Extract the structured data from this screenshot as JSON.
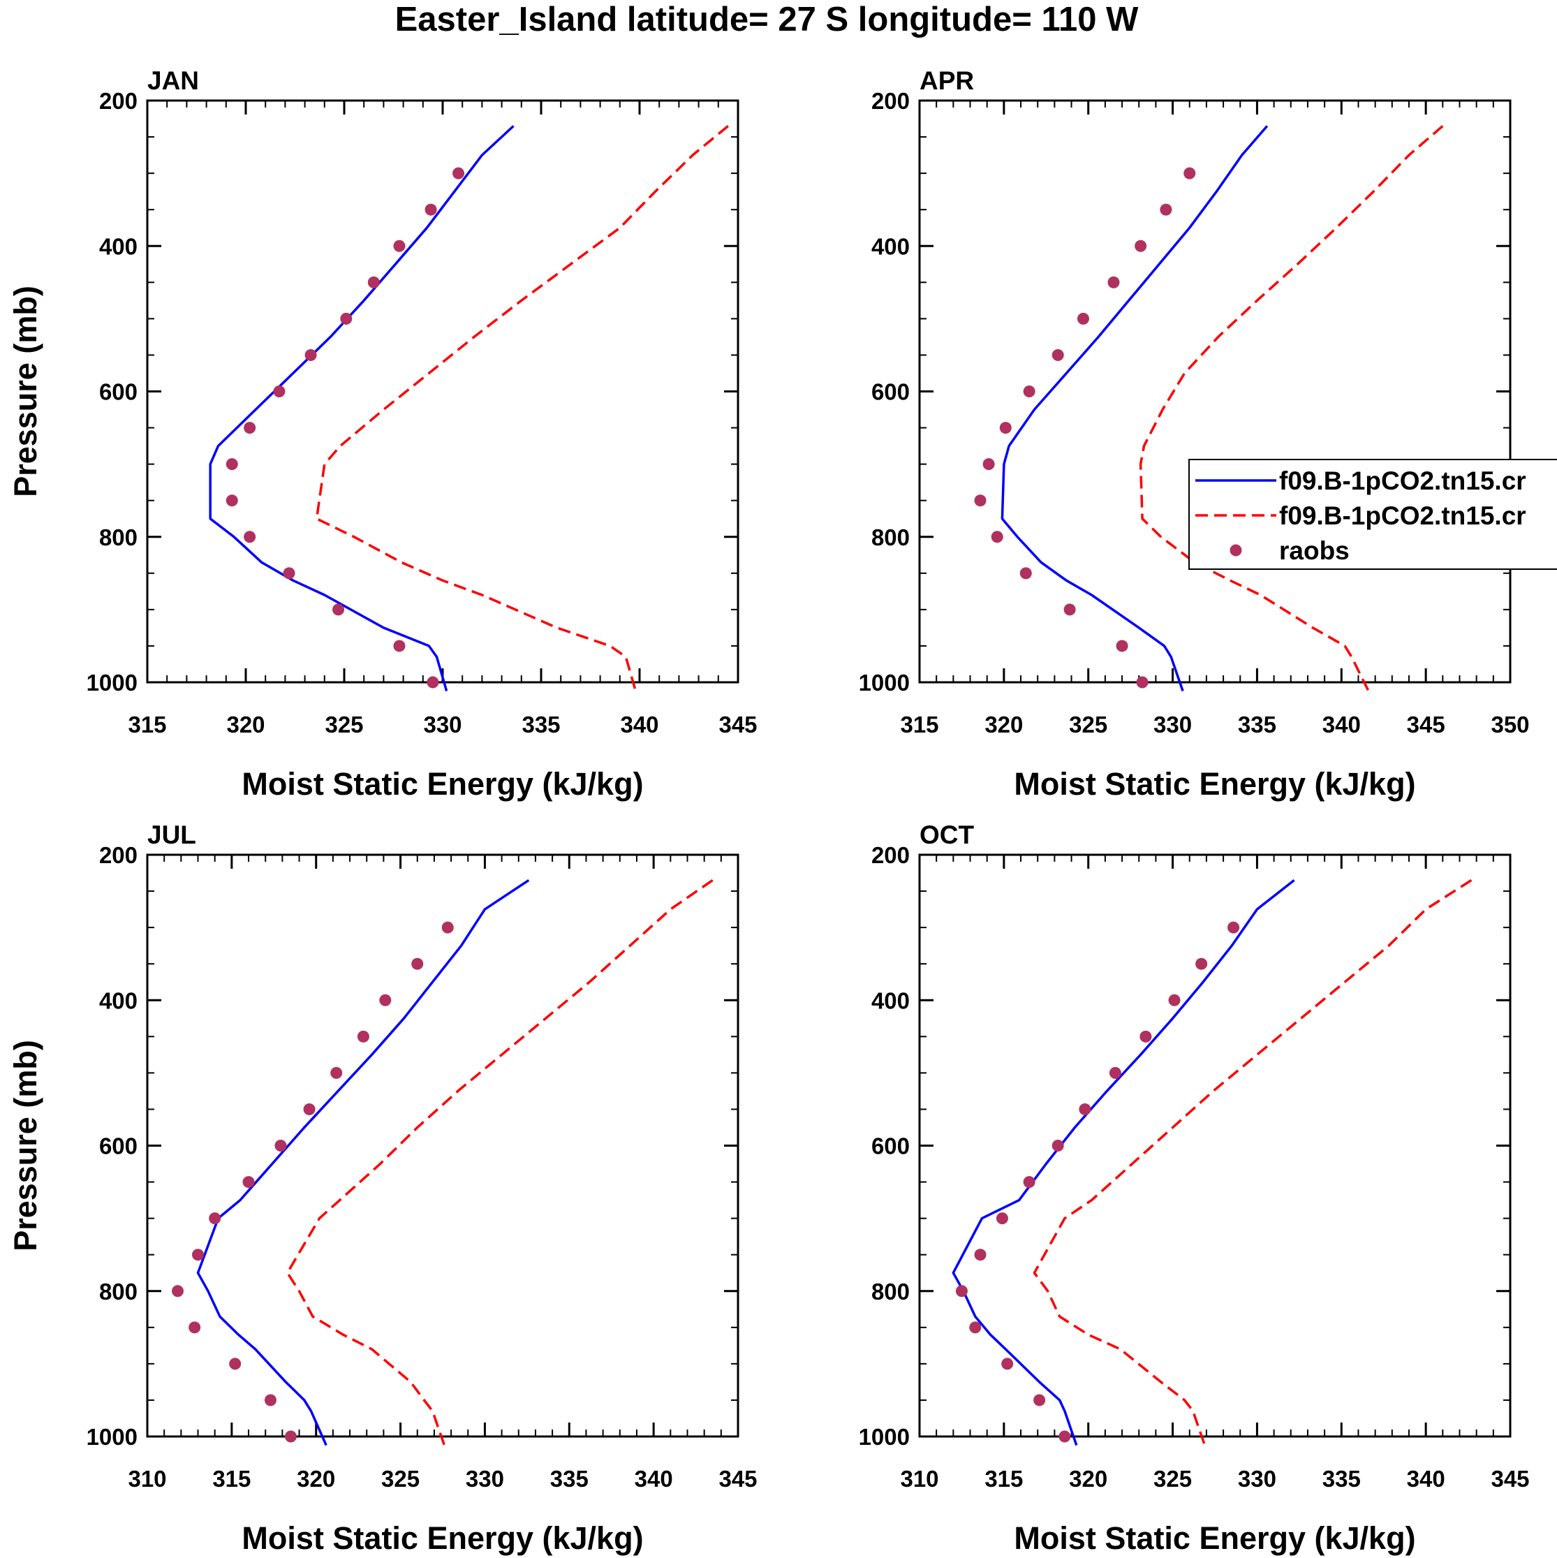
{
  "title": "Easter_Island  latitude= 27 S longitude= 110 W",
  "colors": {
    "model_a": "#0000ff",
    "model_b": "#ff0000",
    "obs": "#b03060",
    "axis": "#000000"
  },
  "legend": {
    "panel": 1,
    "placement": "right-middle",
    "entries": [
      {
        "label": "f09.B-1pCO2.tn15.cr",
        "series": "model_a"
      },
      {
        "label": "f09.B-1pCO2.tn15.cr",
        "series": "model_b"
      },
      {
        "label": "raobs",
        "series": "obs"
      }
    ]
  },
  "chart_data": [
    {
      "type": "line",
      "title": "JAN",
      "xlabel": "Moist Static Energy (kJ/kg)",
      "ylabel": "Pressure (mb)",
      "xlim": [
        315,
        345
      ],
      "ylim": [
        1000,
        200
      ],
      "xticks": [
        315,
        320,
        325,
        330,
        335,
        340,
        345
      ],
      "yticks": [
        200,
        400,
        600,
        800,
        1000
      ],
      "series": [
        {
          "name": "f09.B-1pCO2.tn15.cr",
          "style": "solid",
          "color": "model_a",
          "pressure": [
            235,
            275,
            325,
            375,
            425,
            475,
            525,
            575,
            625,
            675,
            700,
            775,
            800,
            835,
            860,
            880,
            925,
            950,
            965,
            1012
          ],
          "values": [
            333.6,
            332.0,
            330.6,
            329.2,
            327.6,
            326.0,
            324.3,
            322.4,
            320.5,
            318.6,
            318.2,
            318.2,
            319.4,
            320.8,
            322.4,
            324.0,
            327.0,
            329.3,
            329.7,
            330.2
          ]
        },
        {
          "name": "f09.B-1pCO2.tn15.cr",
          "style": "dashed",
          "color": "model_b",
          "pressure": [
            235,
            275,
            325,
            375,
            425,
            475,
            525,
            575,
            625,
            675,
            700,
            775,
            800,
            835,
            860,
            880,
            925,
            950,
            965,
            1012
          ],
          "values": [
            344.5,
            342.7,
            340.8,
            339.0,
            336.5,
            334.0,
            331.6,
            329.3,
            327.0,
            324.8,
            324.0,
            323.6,
            325.5,
            327.9,
            330.0,
            332.0,
            335.8,
            338.5,
            339.3,
            339.8
          ]
        },
        {
          "name": "raobs",
          "style": "markers",
          "color": "obs",
          "pressure": [
            300,
            350,
            400,
            450,
            500,
            550,
            600,
            650,
            700,
            750,
            800,
            850,
            900,
            950,
            1000
          ],
          "values": [
            330.8,
            329.4,
            327.8,
            326.5,
            325.1,
            323.3,
            321.7,
            320.2,
            319.3,
            319.3,
            320.2,
            322.2,
            324.7,
            327.8,
            329.5
          ]
        }
      ]
    },
    {
      "type": "line",
      "title": "APR",
      "xlabel": "Moist Static Energy (kJ/kg)",
      "ylabel": "",
      "xlim": [
        315,
        350
      ],
      "ylim": [
        1000,
        200
      ],
      "xticks": [
        315,
        320,
        325,
        330,
        335,
        340,
        345,
        350
      ],
      "yticks": [
        200,
        400,
        600,
        800,
        1000
      ],
      "series": [
        {
          "name": "f09.B-1pCO2.tn15.cr",
          "style": "solid",
          "color": "model_a",
          "pressure": [
            235,
            275,
            325,
            375,
            425,
            475,
            525,
            575,
            625,
            675,
            700,
            775,
            800,
            835,
            860,
            880,
            925,
            950,
            965,
            1012
          ],
          "values": [
            335.6,
            334.1,
            332.6,
            331.0,
            329.2,
            327.4,
            325.6,
            323.7,
            321.8,
            320.3,
            320.0,
            319.9,
            320.8,
            322.2,
            323.7,
            325.2,
            328.0,
            329.5,
            329.9,
            330.6
          ]
        },
        {
          "name": "f09.B-1pCO2.tn15.cr",
          "style": "dashed",
          "color": "model_b",
          "pressure": [
            235,
            275,
            325,
            375,
            425,
            475,
            525,
            575,
            625,
            675,
            700,
            775,
            800,
            835,
            860,
            880,
            925,
            950,
            965,
            1012
          ],
          "values": [
            346.0,
            344.0,
            341.9,
            339.7,
            337.4,
            335.0,
            332.7,
            330.7,
            329.4,
            328.3,
            328.1,
            328.2,
            329.3,
            331.3,
            333.4,
            335.2,
            338.3,
            340.2,
            340.6,
            341.6
          ]
        },
        {
          "name": "raobs",
          "style": "markers",
          "color": "obs",
          "pressure": [
            300,
            350,
            400,
            450,
            500,
            550,
            600,
            650,
            700,
            750,
            800,
            850,
            900,
            950,
            1000
          ],
          "values": [
            331.0,
            329.6,
            328.1,
            326.5,
            324.7,
            323.2,
            321.5,
            320.1,
            319.1,
            318.6,
            319.6,
            321.3,
            323.9,
            327.0,
            328.2
          ]
        }
      ]
    },
    {
      "type": "line",
      "title": "JUL",
      "xlabel": "Moist Static Energy (kJ/kg)",
      "ylabel": "Pressure (mb)",
      "xlim": [
        310,
        345
      ],
      "ylim": [
        1000,
        200
      ],
      "xticks": [
        310,
        315,
        320,
        325,
        330,
        335,
        340,
        345
      ],
      "yticks": [
        200,
        400,
        600,
        800,
        1000
      ],
      "series": [
        {
          "name": "f09.B-1pCO2.tn15.cr",
          "style": "solid",
          "color": "model_a",
          "pressure": [
            235,
            275,
            325,
            375,
            425,
            475,
            525,
            575,
            625,
            675,
            700,
            775,
            800,
            835,
            860,
            880,
            925,
            950,
            965,
            1012
          ],
          "values": [
            332.6,
            330.0,
            328.6,
            326.9,
            325.2,
            323.3,
            321.3,
            319.3,
            317.4,
            315.5,
            314.2,
            313.0,
            313.6,
            314.3,
            315.4,
            316.4,
            318.2,
            319.3,
            319.7,
            320.6
          ]
        },
        {
          "name": "f09.B-1pCO2.tn15.cr",
          "style": "dashed",
          "color": "model_b",
          "pressure": [
            235,
            275,
            325,
            375,
            425,
            475,
            525,
            575,
            625,
            675,
            700,
            775,
            800,
            835,
            860,
            880,
            925,
            950,
            965,
            1012
          ],
          "values": [
            343.5,
            341.0,
            338.6,
            336.2,
            333.6,
            331.0,
            328.4,
            326.0,
            323.8,
            321.4,
            320.2,
            318.3,
            319.0,
            319.8,
            321.6,
            323.3,
            325.6,
            326.4,
            326.9,
            327.6
          ]
        },
        {
          "name": "raobs",
          "style": "markers",
          "color": "obs",
          "pressure": [
            300,
            350,
            400,
            450,
            500,
            550,
            600,
            650,
            700,
            750,
            800,
            850,
            900,
            950,
            1000
          ],
          "values": [
            327.8,
            326.0,
            324.1,
            322.8,
            321.2,
            319.6,
            317.9,
            316.0,
            314.0,
            313.0,
            311.8,
            312.8,
            315.2,
            317.3,
            318.5
          ]
        }
      ]
    },
    {
      "type": "line",
      "title": "OCT",
      "xlabel": "Moist Static Energy (kJ/kg)",
      "ylabel": "",
      "xlim": [
        310,
        345
      ],
      "ylim": [
        1000,
        200
      ],
      "xticks": [
        310,
        315,
        320,
        325,
        330,
        335,
        340,
        345
      ],
      "yticks": [
        200,
        400,
        600,
        800,
        1000
      ],
      "series": [
        {
          "name": "f09.B-1pCO2.tn15.cr",
          "style": "solid",
          "color": "model_a",
          "pressure": [
            235,
            275,
            325,
            375,
            425,
            475,
            525,
            575,
            625,
            675,
            700,
            775,
            800,
            835,
            860,
            880,
            925,
            950,
            965,
            1012
          ],
          "values": [
            332.2,
            330.0,
            328.5,
            326.8,
            325.0,
            323.1,
            321.1,
            319.2,
            317.5,
            315.9,
            313.7,
            312.0,
            312.6,
            313.3,
            314.2,
            315.1,
            317.1,
            318.3,
            318.6,
            319.3
          ]
        },
        {
          "name": "f09.B-1pCO2.tn15.cr",
          "style": "dashed",
          "color": "model_b",
          "pressure": [
            235,
            275,
            325,
            375,
            425,
            475,
            525,
            575,
            625,
            675,
            700,
            775,
            800,
            835,
            860,
            880,
            925,
            950,
            965,
            1012
          ],
          "values": [
            342.7,
            340.0,
            337.8,
            335.2,
            332.6,
            330.0,
            327.4,
            325.0,
            322.6,
            320.2,
            318.6,
            316.8,
            317.6,
            318.3,
            320.0,
            321.9,
            324.3,
            325.7,
            326.2,
            326.9
          ]
        },
        {
          "name": "raobs",
          "style": "markers",
          "color": "obs",
          "pressure": [
            300,
            350,
            400,
            450,
            500,
            550,
            600,
            650,
            700,
            750,
            800,
            850,
            900,
            950,
            1000
          ],
          "values": [
            328.6,
            326.7,
            325.1,
            323.4,
            321.6,
            319.8,
            318.2,
            316.5,
            314.9,
            313.6,
            312.5,
            313.3,
            315.2,
            317.1,
            318.6
          ]
        }
      ]
    }
  ]
}
